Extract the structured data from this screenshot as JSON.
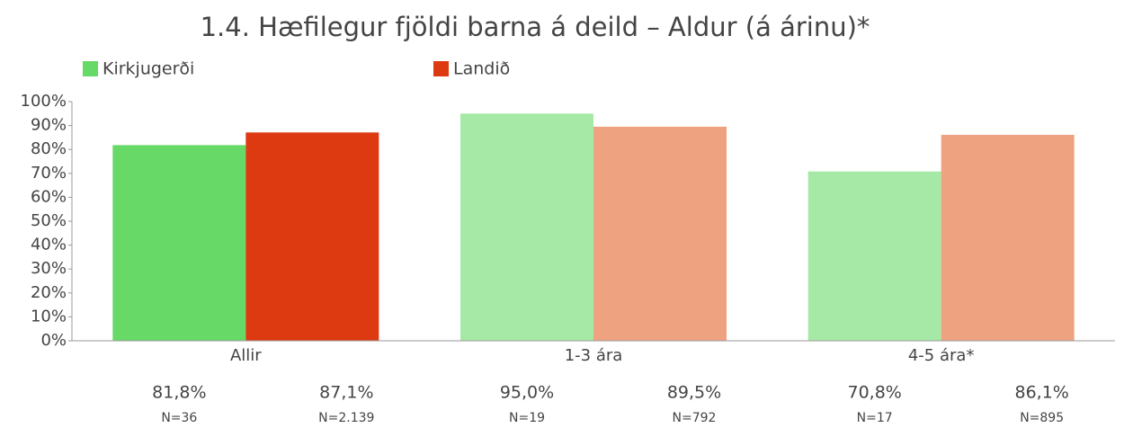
{
  "chart_data": {
    "type": "bar",
    "title": "1.4. Hæfilegur fjöldi barna á deild – Aldur (á árinu)*",
    "categories": [
      "Allir",
      "1-3 ára",
      "4-5 ára*"
    ],
    "series": [
      {
        "name": "Kirkjugerði",
        "colors": [
          "#66d966",
          "#a6e9a6",
          "#a6e9a6"
        ],
        "values": [
          81.8,
          95.0,
          70.8
        ],
        "value_labels": [
          "81,8%",
          "95,0%",
          "70,8%"
        ],
        "n_labels": [
          "N=36",
          "N=19",
          "N=17"
        ]
      },
      {
        "name": "Landið",
        "colors": [
          "#dd3a12",
          "#efa27f",
          "#efa27f"
        ],
        "values": [
          87.1,
          89.5,
          86.1
        ],
        "value_labels": [
          "87,1%",
          "89,5%",
          "86,1%"
        ],
        "n_labels": [
          "N=2.139",
          "N=792",
          "N=895"
        ]
      }
    ],
    "ylim": [
      0,
      100
    ],
    "yticks": [
      {
        "value": 0,
        "label": "0%"
      },
      {
        "value": 10,
        "label": "10%"
      },
      {
        "value": 20,
        "label": "20%"
      },
      {
        "value": 30,
        "label": "30%"
      },
      {
        "value": 40,
        "label": "40%"
      },
      {
        "value": 50,
        "label": "50%"
      },
      {
        "value": 60,
        "label": "60%"
      },
      {
        "value": 70,
        "label": "70%"
      },
      {
        "value": 80,
        "label": "80%"
      },
      {
        "value": 90,
        "label": "90%"
      },
      {
        "value": 100,
        "label": "100%"
      }
    ]
  }
}
